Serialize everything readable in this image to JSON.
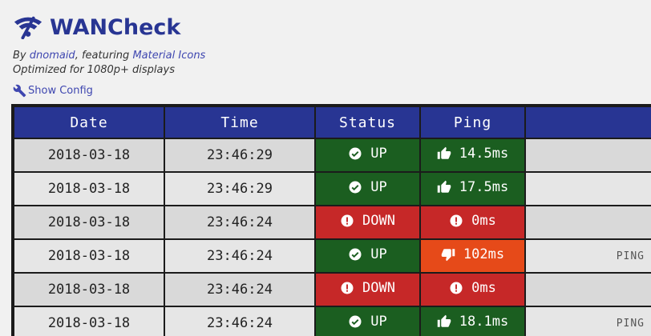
{
  "app": {
    "title": "WANCheck",
    "by_prefix": "By ",
    "author": "dnomaid",
    "featuring": ", featuring ",
    "icons_link": "Material Icons",
    "optimized": "Optimized for 1080p+ displays",
    "show_config": "Show Config"
  },
  "colors": {
    "header": "#283593",
    "up": "#1b5e20",
    "down": "#c62828",
    "slow": "#e64a19",
    "link": "#3f47b0"
  },
  "table": {
    "headers": [
      "Date",
      "Time",
      "Status",
      "Ping",
      ""
    ],
    "rows": [
      {
        "date": "2018-03-18",
        "time": "23:46:29",
        "status": "UP",
        "status_icon": "check-circle-icon",
        "ping": "14.5ms",
        "ping_icon": "thumb-up-icon",
        "extra": ""
      },
      {
        "date": "2018-03-18",
        "time": "23:46:29",
        "status": "UP",
        "status_icon": "check-circle-icon",
        "ping": "17.5ms",
        "ping_icon": "thumb-up-icon",
        "extra": ""
      },
      {
        "date": "2018-03-18",
        "time": "23:46:24",
        "status": "DOWN",
        "status_icon": "error-icon",
        "ping": "0ms",
        "ping_icon": "error-icon",
        "extra": ""
      },
      {
        "date": "2018-03-18",
        "time": "23:46:24",
        "status": "UP",
        "status_icon": "check-circle-icon",
        "ping": "102ms",
        "ping_icon": "thumb-down-icon",
        "extra": "PING"
      },
      {
        "date": "2018-03-18",
        "time": "23:46:24",
        "status": "DOWN",
        "status_icon": "error-icon",
        "ping": "0ms",
        "ping_icon": "error-icon",
        "extra": ""
      },
      {
        "date": "2018-03-18",
        "time": "23:46:24",
        "status": "UP",
        "status_icon": "check-circle-icon",
        "ping": "18.1ms",
        "ping_icon": "thumb-up-icon",
        "extra": "PING"
      }
    ]
  }
}
